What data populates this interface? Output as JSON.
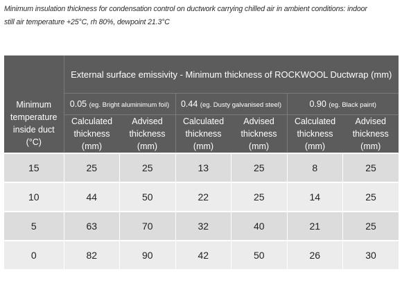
{
  "caption": "Minimum insulation thickness for condensation control on ductwork carrying chilled air in ambient conditions: indoor still air temperature +25°C, rh 80%, dewpoint 21.3°C",
  "table": {
    "first_column_header": "Minimum temperature inside duct (°C)",
    "group_header": "External surface emissivity - Minimum thickness of ROCKWOOL Ductwrap (mm)",
    "emissivities": [
      {
        "value": "0.05",
        "example": "(eg. Bright aluminimum foil)"
      },
      {
        "value": "0.44",
        "example": "(eg. Dusty galvanised steel)"
      },
      {
        "value": "0.90",
        "example": "(eg. Black paint)"
      }
    ],
    "sub_headers": {
      "calculated": "Calculated thickness (mm)",
      "advised": "Advised thickness (mm)"
    },
    "rows": [
      {
        "temperature": "15",
        "values": [
          "25",
          "25",
          "13",
          "25",
          "8",
          "25"
        ]
      },
      {
        "temperature": "10",
        "values": [
          "44",
          "50",
          "22",
          "25",
          "14",
          "25"
        ]
      },
      {
        "temperature": "5",
        "values": [
          "63",
          "70",
          "32",
          "40",
          "21",
          "25"
        ]
      },
      {
        "temperature": "0",
        "values": [
          "82",
          "90",
          "42",
          "50",
          "26",
          "30"
        ]
      }
    ]
  },
  "colors": {
    "header_bg": "#5c5c5c",
    "header_text": "#ffffff",
    "row_dark": "#dcdcdc",
    "row_light": "#ececec"
  }
}
